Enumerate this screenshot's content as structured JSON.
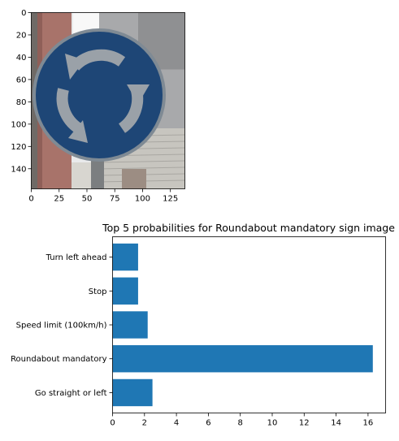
{
  "charts": [
    {
      "type": "image",
      "title": "",
      "xlim": [
        0,
        138
      ],
      "ylim": [
        158,
        0
      ],
      "xticks": [
        0,
        25,
        50,
        75,
        100,
        125
      ],
      "yticks": [
        0,
        20,
        40,
        60,
        80,
        100,
        120,
        140
      ],
      "image_subject": "blue circular roundabout mandatory traffic sign",
      "colors": {
        "sign_blue": "#1e4676",
        "sign_rim": "#7f8a94",
        "arrow_gray": "#9aa1a8",
        "sky_white": "#f4f5f6",
        "pole_gray": "#8a8d90",
        "pillar_red": "#a8736a",
        "building_gray": "#c9c7c2"
      }
    },
    {
      "type": "bar",
      "orientation": "horizontal",
      "title": "Top 5 probabilities for Roundabout mandatory sign image",
      "categories": [
        "Go straight or left",
        "Roundabout mandatory",
        "Speed limit (100km/h)",
        "Stop",
        "Turn left ahead"
      ],
      "values": [
        2.5,
        16.3,
        2.2,
        1.6,
        1.6
      ],
      "xticks": [
        0,
        2,
        4,
        6,
        8,
        10,
        12,
        14,
        16
      ],
      "xlim": [
        0,
        17.1
      ],
      "bar_color": "#1f77b4",
      "xlabel": "",
      "ylabel": ""
    }
  ]
}
